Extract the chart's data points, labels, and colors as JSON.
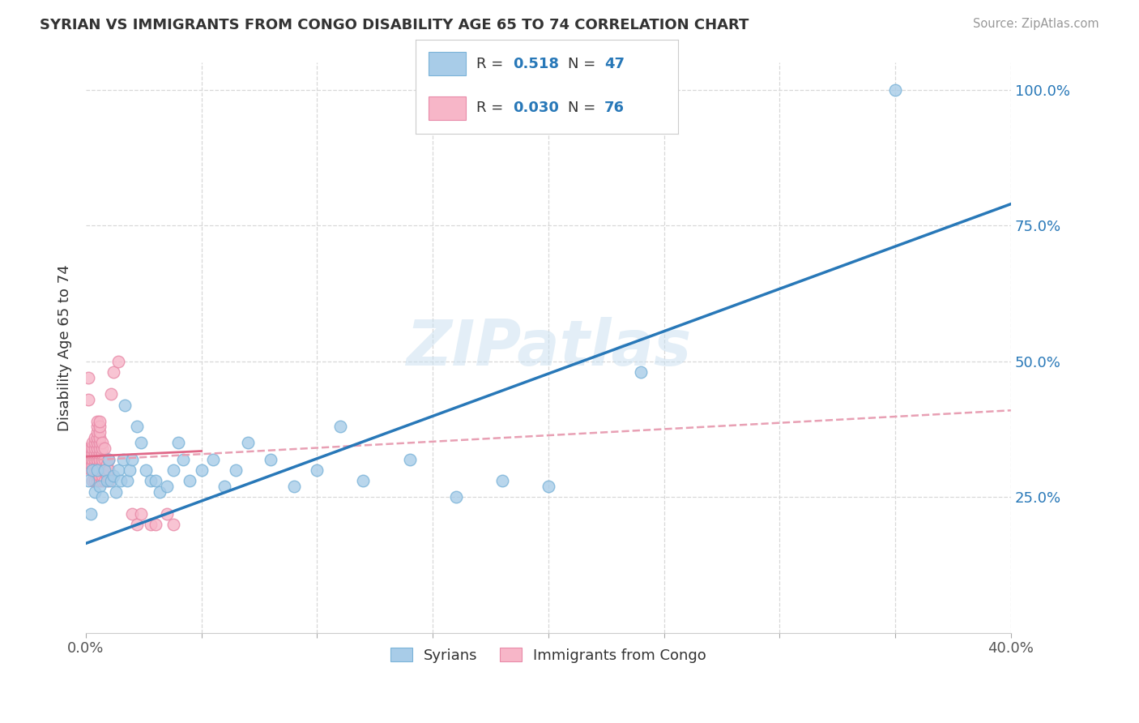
{
  "title": "SYRIAN VS IMMIGRANTS FROM CONGO DISABILITY AGE 65 TO 74 CORRELATION CHART",
  "source": "Source: ZipAtlas.com",
  "ylabel": "Disability Age 65 to 74",
  "xlim": [
    0.0,
    0.4
  ],
  "ylim": [
    0.0,
    1.05
  ],
  "xtick_positions": [
    0.0,
    0.05,
    0.1,
    0.15,
    0.2,
    0.25,
    0.3,
    0.35,
    0.4
  ],
  "xtick_labels": [
    "0.0%",
    "",
    "",
    "",
    "",
    "",
    "",
    "",
    "40.0%"
  ],
  "ytick_positions": [
    0.0,
    0.25,
    0.5,
    0.75,
    1.0
  ],
  "ytick_labels_right": [
    "",
    "25.0%",
    "50.0%",
    "75.0%",
    "100.0%"
  ],
  "watermark": "ZIPatlas",
  "color_blue_fill": "#a8cce8",
  "color_blue_edge": "#7ab3d8",
  "color_pink_fill": "#f7b6c8",
  "color_pink_edge": "#e88aa8",
  "color_trend_blue": "#2878b8",
  "color_trend_pink": "#e06888",
  "color_trend_pink_dashed": "#e8a0b4",
  "grid_color": "#d8d8d8",
  "background_color": "#ffffff",
  "blue_x": [
    0.001,
    0.002,
    0.003,
    0.004,
    0.005,
    0.006,
    0.007,
    0.008,
    0.009,
    0.01,
    0.011,
    0.012,
    0.013,
    0.014,
    0.015,
    0.016,
    0.017,
    0.018,
    0.019,
    0.02,
    0.022,
    0.024,
    0.026,
    0.028,
    0.03,
    0.032,
    0.035,
    0.038,
    0.04,
    0.042,
    0.045,
    0.05,
    0.055,
    0.06,
    0.065,
    0.07,
    0.08,
    0.09,
    0.1,
    0.11,
    0.12,
    0.14,
    0.16,
    0.18,
    0.2,
    0.24,
    0.35
  ],
  "blue_y": [
    0.28,
    0.22,
    0.3,
    0.26,
    0.3,
    0.27,
    0.25,
    0.3,
    0.28,
    0.32,
    0.28,
    0.29,
    0.26,
    0.3,
    0.28,
    0.32,
    0.42,
    0.28,
    0.3,
    0.32,
    0.38,
    0.35,
    0.3,
    0.28,
    0.28,
    0.26,
    0.27,
    0.3,
    0.35,
    0.32,
    0.28,
    0.3,
    0.32,
    0.27,
    0.3,
    0.35,
    0.32,
    0.27,
    0.3,
    0.38,
    0.28,
    0.32,
    0.25,
    0.28,
    0.27,
    0.48,
    1.0
  ],
  "pink_x": [
    0.001,
    0.001,
    0.001,
    0.002,
    0.002,
    0.002,
    0.002,
    0.002,
    0.003,
    0.003,
    0.003,
    0.003,
    0.003,
    0.003,
    0.003,
    0.004,
    0.004,
    0.004,
    0.004,
    0.004,
    0.004,
    0.004,
    0.004,
    0.005,
    0.005,
    0.005,
    0.005,
    0.005,
    0.005,
    0.005,
    0.005,
    0.005,
    0.005,
    0.005,
    0.005,
    0.006,
    0.006,
    0.006,
    0.006,
    0.006,
    0.006,
    0.006,
    0.006,
    0.006,
    0.006,
    0.006,
    0.006,
    0.007,
    0.007,
    0.007,
    0.007,
    0.007,
    0.007,
    0.007,
    0.007,
    0.008,
    0.008,
    0.008,
    0.008,
    0.009,
    0.009,
    0.01,
    0.01,
    0.01,
    0.011,
    0.012,
    0.014,
    0.02,
    0.022,
    0.024,
    0.028,
    0.03,
    0.035,
    0.038,
    0.001,
    0.001
  ],
  "pink_y": [
    0.32,
    0.33,
    0.34,
    0.3,
    0.31,
    0.32,
    0.33,
    0.34,
    0.28,
    0.3,
    0.31,
    0.32,
    0.33,
    0.34,
    0.35,
    0.28,
    0.3,
    0.31,
    0.32,
    0.33,
    0.34,
    0.35,
    0.36,
    0.28,
    0.29,
    0.3,
    0.31,
    0.32,
    0.33,
    0.34,
    0.35,
    0.36,
    0.37,
    0.38,
    0.39,
    0.28,
    0.29,
    0.3,
    0.31,
    0.32,
    0.33,
    0.34,
    0.35,
    0.36,
    0.37,
    0.38,
    0.39,
    0.28,
    0.29,
    0.3,
    0.31,
    0.32,
    0.33,
    0.34,
    0.35,
    0.28,
    0.3,
    0.32,
    0.34,
    0.29,
    0.31,
    0.28,
    0.3,
    0.32,
    0.44,
    0.48,
    0.5,
    0.22,
    0.2,
    0.22,
    0.2,
    0.2,
    0.22,
    0.2,
    0.43,
    0.47
  ],
  "blue_trend_x0": 0.0,
  "blue_trend_y0": 0.165,
  "blue_trend_x1": 0.4,
  "blue_trend_y1": 0.79,
  "pink_trend_solid_x0": 0.0,
  "pink_trend_solid_y0": 0.325,
  "pink_trend_solid_x1": 0.05,
  "pink_trend_solid_y1": 0.335,
  "pink_trend_dashed_x0": 0.0,
  "pink_trend_dashed_y0": 0.318,
  "pink_trend_dashed_x1": 0.4,
  "pink_trend_dashed_y1": 0.41
}
